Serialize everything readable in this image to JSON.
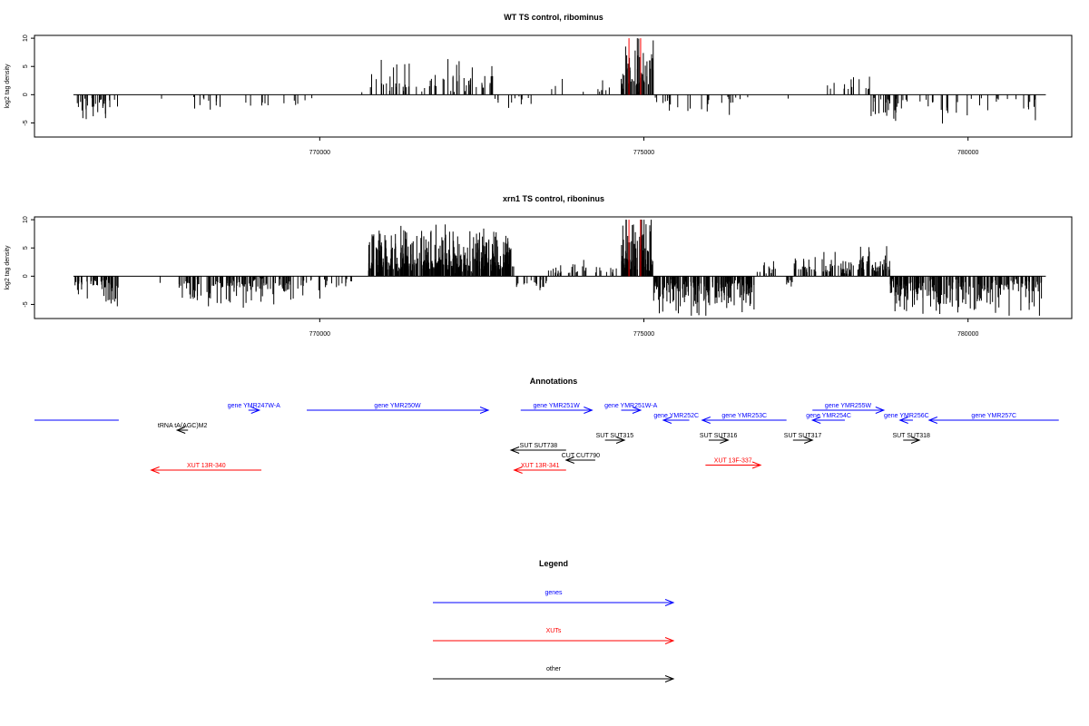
{
  "colors": {
    "genes": "#0000ff",
    "xuts": "#ff0000",
    "other": "#000000",
    "bars": "#000000",
    "highlight": "#ff0000"
  },
  "chart_data": [
    {
      "type": "bar",
      "title": "WT TS control, ribominus",
      "ylabel": "log2 tag density",
      "xlim": [
        765600,
        781600
      ],
      "ylim": [
        -7.5,
        10.5
      ],
      "x_ticks": [
        770000,
        775000,
        780000
      ],
      "x_tick_labels": [
        "770000",
        "775000",
        "780000"
      ],
      "y_ticks": [
        -5,
        0,
        5,
        10
      ],
      "y_tick_labels": [
        "-5",
        "0",
        "5",
        "10"
      ],
      "data_range": [
        766200,
        781200
      ],
      "highlight_positions": [
        774770,
        774950
      ],
      "segments": [
        {
          "start": 766200,
          "end": 766900,
          "sign": -1,
          "density": 0.6,
          "amp": 3.5
        },
        {
          "start": 767500,
          "end": 767600,
          "sign": -1,
          "density": 0.2,
          "amp": 1.2
        },
        {
          "start": 768000,
          "end": 768600,
          "sign": -1,
          "density": 0.25,
          "amp": 2.5
        },
        {
          "start": 768800,
          "end": 770200,
          "sign": -1,
          "density": 0.12,
          "amp": 2.5
        },
        {
          "start": 770600,
          "end": 770650,
          "sign": 1,
          "density": 0.2,
          "amp": 1.2
        },
        {
          "start": 770750,
          "end": 772700,
          "sign": 1,
          "density": 0.45,
          "amp": 5.0
        },
        {
          "start": 772700,
          "end": 773400,
          "sign": -1,
          "density": 0.25,
          "amp": 2.0
        },
        {
          "start": 773400,
          "end": 774600,
          "sign": 1,
          "density": 0.12,
          "amp": 2.5
        },
        {
          "start": 774650,
          "end": 775150,
          "sign": 1,
          "density": 1.6,
          "amp": 8.0
        },
        {
          "start": 775150,
          "end": 776400,
          "sign": -1,
          "density": 0.25,
          "amp": 3.2
        },
        {
          "start": 776400,
          "end": 777500,
          "sign": -1,
          "density": 0.05,
          "amp": 1.0
        },
        {
          "start": 777800,
          "end": 778500,
          "sign": 1,
          "density": 0.3,
          "amp": 3.0
        },
        {
          "start": 778500,
          "end": 779100,
          "sign": -1,
          "density": 0.6,
          "amp": 4.0
        },
        {
          "start": 779100,
          "end": 781100,
          "sign": -1,
          "density": 0.22,
          "amp": 3.5
        }
      ]
    },
    {
      "type": "bar",
      "title": "xrn1 TS control, riboninus",
      "ylabel": "log2 tag density",
      "xlim": [
        765600,
        781600
      ],
      "ylim": [
        -7.5,
        10.5
      ],
      "x_ticks": [
        770000,
        775000,
        780000
      ],
      "x_tick_labels": [
        "770000",
        "775000",
        "780000"
      ],
      "y_ticks": [
        -5,
        0,
        5,
        10
      ],
      "y_tick_labels": [
        "-5",
        "0",
        "5",
        "10"
      ],
      "data_range": [
        766200,
        781200
      ],
      "highlight_positions": [
        774770,
        774950
      ],
      "segments": [
        {
          "start": 766200,
          "end": 766900,
          "sign": -1,
          "density": 1.0,
          "amp": 4.5
        },
        {
          "start": 767500,
          "end": 767600,
          "sign": -1,
          "density": 0.2,
          "amp": 2.0
        },
        {
          "start": 767800,
          "end": 769600,
          "sign": -1,
          "density": 1.0,
          "amp": 4.0
        },
        {
          "start": 769600,
          "end": 770500,
          "sign": -1,
          "density": 0.4,
          "amp": 2.8
        },
        {
          "start": 770750,
          "end": 773000,
          "sign": 1,
          "density": 2.4,
          "amp": 6.5
        },
        {
          "start": 773000,
          "end": 773500,
          "sign": -1,
          "density": 0.5,
          "amp": 2.8
        },
        {
          "start": 773500,
          "end": 774600,
          "sign": 1,
          "density": 0.45,
          "amp": 2.0
        },
        {
          "start": 774650,
          "end": 775150,
          "sign": 1,
          "density": 2.6,
          "amp": 9.0
        },
        {
          "start": 775150,
          "end": 776700,
          "sign": -1,
          "density": 1.8,
          "amp": 5.5
        },
        {
          "start": 776700,
          "end": 777100,
          "sign": 1,
          "density": 0.5,
          "amp": 2.5
        },
        {
          "start": 777100,
          "end": 777300,
          "sign": -1,
          "density": 0.5,
          "amp": 2.5
        },
        {
          "start": 777300,
          "end": 778300,
          "sign": 1,
          "density": 0.9,
          "amp": 3.2
        },
        {
          "start": 778300,
          "end": 778800,
          "sign": 1,
          "density": 1.4,
          "amp": 4.0
        },
        {
          "start": 778800,
          "end": 779250,
          "sign": -1,
          "density": 2.4,
          "amp": 5.0
        },
        {
          "start": 779250,
          "end": 781150,
          "sign": -1,
          "density": 1.2,
          "amp": 5.2
        }
      ]
    }
  ],
  "annotations": {
    "title": "Annotations",
    "items": [
      {
        "label": "",
        "type": "gene",
        "dir": "none",
        "start": 765600,
        "end": 766900,
        "row": 1
      },
      {
        "label": "gene YMR247W-A",
        "type": "gene",
        "dir": "+",
        "start": 768900,
        "end": 769000,
        "row": 0
      },
      {
        "label": "gene YMR250W",
        "type": "gene",
        "dir": "+",
        "start": 769800,
        "end": 772600,
        "row": 0
      },
      {
        "label": "gene YMR251W",
        "type": "gene",
        "dir": "+",
        "start": 773100,
        "end": 774200,
        "row": 0
      },
      {
        "label": "gene YMR251W-A",
        "type": "gene",
        "dir": "+",
        "start": 774650,
        "end": 774950,
        "row": 0
      },
      {
        "label": "gene YMR252C",
        "type": "gene",
        "dir": "-",
        "start": 775300,
        "end": 775700,
        "row": 1
      },
      {
        "label": "gene YMR253C",
        "type": "gene",
        "dir": "-",
        "start": 775900,
        "end": 777200,
        "row": 1
      },
      {
        "label": "gene YMR254C",
        "type": "gene",
        "dir": "-",
        "start": 777600,
        "end": 778100,
        "row": 1
      },
      {
        "label": "gene YMR255W",
        "type": "gene",
        "dir": "+",
        "start": 777600,
        "end": 778700,
        "row": 0
      },
      {
        "label": "gene YMR256C",
        "type": "gene",
        "dir": "-",
        "start": 778950,
        "end": 779150,
        "row": 1
      },
      {
        "label": "gene YMR257C",
        "type": "gene",
        "dir": "-",
        "start": 779400,
        "end": 781400,
        "row": 1
      },
      {
        "label": "tRNA tA(AGC)M2",
        "type": "other",
        "dir": "-",
        "start": 767800,
        "end": 767900,
        "row": 2
      },
      {
        "label": "SUT SUT738",
        "type": "other",
        "dir": "-",
        "start": 772950,
        "end": 773800,
        "row": 4
      },
      {
        "label": "SUT SUT315",
        "type": "other",
        "dir": "+",
        "start": 774400,
        "end": 774700,
        "row": 3
      },
      {
        "label": "SUT SUT316",
        "type": "other",
        "dir": "+",
        "start": 776000,
        "end": 776300,
        "row": 3
      },
      {
        "label": "SUT SUT317",
        "type": "other",
        "dir": "+",
        "start": 777300,
        "end": 777600,
        "row": 3
      },
      {
        "label": "SUT SUT318",
        "type": "other",
        "dir": "+",
        "start": 779000,
        "end": 779250,
        "row": 3
      },
      {
        "label": "CUT CUT790",
        "type": "other",
        "dir": "-",
        "start": 773800,
        "end": 774250,
        "row": 5
      },
      {
        "label": "XUT 13R-340",
        "type": "xut",
        "dir": "-",
        "start": 767400,
        "end": 769100,
        "row": 6
      },
      {
        "label": "XUT 13R-341",
        "type": "xut",
        "dir": "-",
        "start": 773000,
        "end": 773800,
        "row": 6
      },
      {
        "label": "XUT 13F-337",
        "type": "xut",
        "dir": "+",
        "start": 775950,
        "end": 776800,
        "row": 5.5
      }
    ]
  },
  "legend": {
    "title": "Legend",
    "items": [
      {
        "label": "genes",
        "type": "gene"
      },
      {
        "label": "XUTs",
        "type": "xut"
      },
      {
        "label": "other",
        "type": "other"
      }
    ]
  }
}
